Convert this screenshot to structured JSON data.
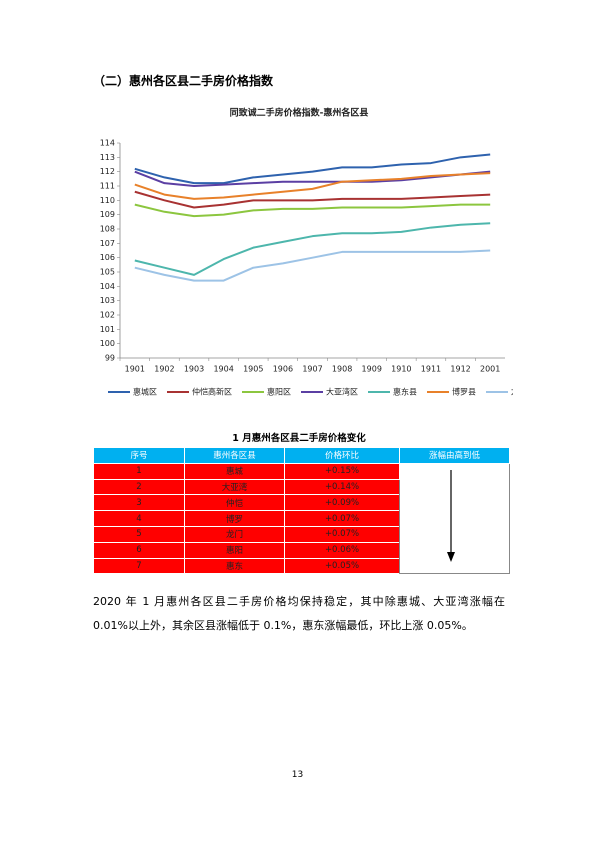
{
  "header": {
    "title": "（二）惠州各区县二手房价格指数"
  },
  "chart_data": {
    "type": "line",
    "title": "同致诚二手房价格指数-惠州各区县",
    "categories": [
      "1901",
      "1902",
      "1903",
      "1904",
      "1905",
      "1906",
      "1907",
      "1908",
      "1909",
      "1910",
      "1911",
      "1912",
      "2001"
    ],
    "series": [
      {
        "name": "惠城区",
        "color": "#2E62AE",
        "values": [
          112.2,
          111.6,
          111.2,
          111.2,
          111.6,
          111.8,
          112.0,
          112.3,
          112.3,
          112.5,
          112.6,
          113.0,
          113.2
        ]
      },
      {
        "name": "仲恺高新区",
        "color": "#A83232",
        "values": [
          110.6,
          110.0,
          109.5,
          109.7,
          110.0,
          110.0,
          110.0,
          110.1,
          110.1,
          110.1,
          110.2,
          110.3,
          110.4
        ]
      },
      {
        "name": "惠阳区",
        "color": "#8CC63F",
        "values": [
          109.7,
          109.2,
          108.9,
          109.0,
          109.3,
          109.4,
          109.4,
          109.5,
          109.5,
          109.5,
          109.6,
          109.7,
          109.7
        ]
      },
      {
        "name": "大亚湾区",
        "color": "#5B3FA3",
        "values": [
          112.0,
          111.2,
          111.0,
          111.1,
          111.2,
          111.3,
          111.3,
          111.3,
          111.3,
          111.4,
          111.6,
          111.8,
          112.0
        ]
      },
      {
        "name": "惠东县",
        "color": "#4DB6AC",
        "values": [
          105.8,
          105.3,
          104.8,
          105.9,
          106.7,
          107.1,
          107.5,
          107.7,
          107.7,
          107.8,
          108.1,
          108.3,
          108.4
        ]
      },
      {
        "name": "博罗县",
        "color": "#E8812A",
        "values": [
          111.1,
          110.4,
          110.1,
          110.2,
          110.4,
          110.6,
          110.8,
          111.3,
          111.4,
          111.5,
          111.7,
          111.8,
          111.9
        ]
      },
      {
        "name": "龙门县",
        "color": "#9DC3E6",
        "values": [
          105.3,
          104.8,
          104.4,
          104.4,
          105.3,
          105.6,
          106.0,
          106.4,
          106.4,
          106.4,
          106.4,
          106.4,
          106.5
        ]
      }
    ],
    "ylim": [
      99,
      114
    ],
    "yticks": [
      99,
      100,
      101,
      102,
      103,
      104,
      105,
      106,
      107,
      108,
      109,
      110,
      111,
      112,
      113,
      114
    ],
    "grid": false,
    "legend": "bottom"
  },
  "table": {
    "title": "1 月惠州各区县二手房价格变化",
    "header": [
      "序号",
      "惠州各区县",
      "价格环比",
      "涨幅由高到低"
    ],
    "rows": [
      [
        "1",
        "惠城",
        "+0.15%"
      ],
      [
        "2",
        "大亚湾",
        "+0.14%"
      ],
      [
        "3",
        "仲恺",
        "+0.09%"
      ],
      [
        "4",
        "博罗",
        "+0.07%"
      ],
      [
        "5",
        "龙门",
        "+0.07%"
      ],
      [
        "6",
        "惠阳",
        "+0.06%"
      ],
      [
        "7",
        "惠东",
        "+0.05%"
      ]
    ]
  },
  "paragraph": "2020 年 1 月惠州各区县二手房价格均保持稳定，其中除惠城、大亚湾涨幅在 0.01%以上外，其余区县涨幅低于 0.1%，惠东涨幅最低，环比上涨 0.05%。",
  "page_number": "13"
}
